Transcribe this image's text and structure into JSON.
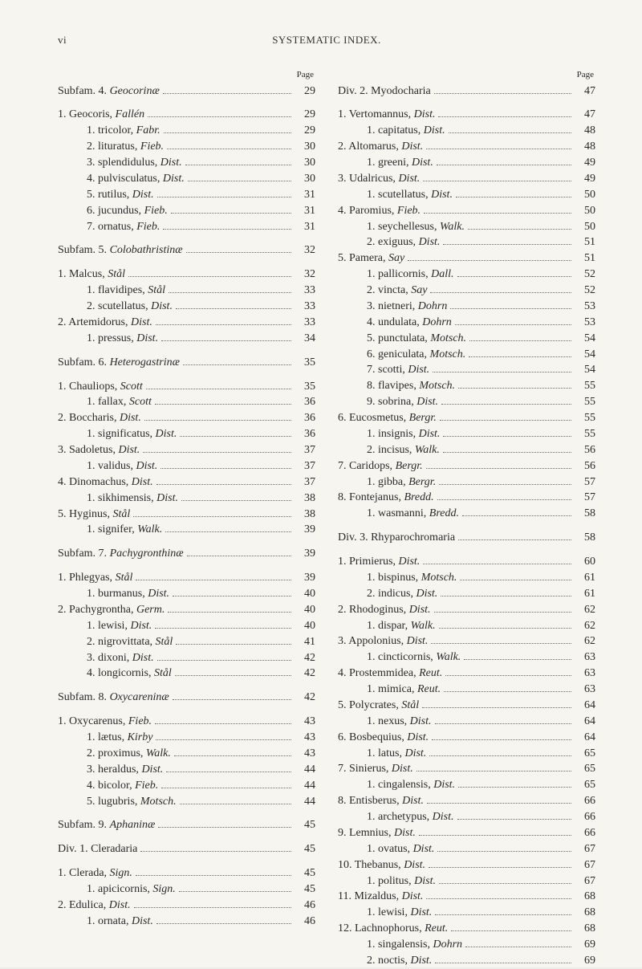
{
  "header": {
    "page_number": "vi",
    "title": "SYSTEMATIC INDEX."
  },
  "columns": {
    "left": {
      "page_label": "Page",
      "entries": [
        {
          "indent": 0,
          "label": "Subfam. 4. <i>Geocorinæ</i>",
          "page": "29",
          "gap": false
        },
        {
          "indent": 0,
          "label": "1. Geocoris, <i>Fallén</i>",
          "page": "29",
          "gap": true
        },
        {
          "indent": 2,
          "label": "1. tricolor, <i>Fabr.</i>",
          "page": "29"
        },
        {
          "indent": 2,
          "label": "2. lituratus, <i>Fieb.</i>",
          "page": "30"
        },
        {
          "indent": 2,
          "label": "3. splendidulus, <i>Dist.</i>",
          "page": "30"
        },
        {
          "indent": 2,
          "label": "4. pulvisculatus, <i>Dist.</i>",
          "page": "30"
        },
        {
          "indent": 2,
          "label": "5. rutilus, <i>Dist.</i>",
          "page": "31"
        },
        {
          "indent": 2,
          "label": "6. jucundus, <i>Fieb.</i>",
          "page": "31"
        },
        {
          "indent": 2,
          "label": "7. ornatus, <i>Fieb.</i>",
          "page": "31"
        },
        {
          "indent": 0,
          "label": "Subfam. 5. <i>Colobathristinæ</i>",
          "page": "32",
          "gap": true
        },
        {
          "indent": 0,
          "label": "1. Malcus, <i>Stål</i>",
          "page": "32",
          "gap": true
        },
        {
          "indent": 2,
          "label": "1. flavidipes, <i>Stål</i>",
          "page": "33"
        },
        {
          "indent": 2,
          "label": "2. scutellatus, <i>Dist.</i>",
          "page": "33"
        },
        {
          "indent": 0,
          "label": "2. Artemidorus, <i>Dist.</i>",
          "page": "33"
        },
        {
          "indent": 2,
          "label": "1. pressus, <i>Dist.</i>",
          "page": "34"
        },
        {
          "indent": 0,
          "label": "Subfam. 6. <i>Heterogastrinæ</i>",
          "page": "35",
          "gap": true
        },
        {
          "indent": 0,
          "label": "1. Chauliops, <i>Scott</i>",
          "page": "35",
          "gap": true
        },
        {
          "indent": 2,
          "label": "1. fallax, <i>Scott</i>",
          "page": "36"
        },
        {
          "indent": 0,
          "label": "2. Boccharis, <i>Dist.</i>",
          "page": "36"
        },
        {
          "indent": 2,
          "label": "1. significatus, <i>Dist.</i>",
          "page": "36"
        },
        {
          "indent": 0,
          "label": "3. Sadoletus, <i>Dist.</i>",
          "page": "37"
        },
        {
          "indent": 2,
          "label": "1. validus, <i>Dist.</i>",
          "page": "37"
        },
        {
          "indent": 0,
          "label": "4. Dinomachus, <i>Dist.</i>",
          "page": "37"
        },
        {
          "indent": 2,
          "label": "1. sikhimensis, <i>Dist.</i>",
          "page": "38"
        },
        {
          "indent": 0,
          "label": "5. Hyginus, <i>Stål</i>",
          "page": "38"
        },
        {
          "indent": 2,
          "label": "1. signifer, <i>Walk.</i>",
          "page": "39"
        },
        {
          "indent": 0,
          "label": "Subfam. 7. <i>Pachygronthinæ</i>",
          "page": "39",
          "gap": true
        },
        {
          "indent": 0,
          "label": "1. Phlegyas, <i>Stål</i>",
          "page": "39",
          "gap": true
        },
        {
          "indent": 2,
          "label": "1. burmanus, <i>Dist.</i>",
          "page": "40"
        },
        {
          "indent": 0,
          "label": "2. Pachygrontha, <i>Germ.</i>",
          "page": "40"
        },
        {
          "indent": 2,
          "label": "1. lewisi, <i>Dist.</i>",
          "page": "40"
        },
        {
          "indent": 2,
          "label": "2. nigrovittata, <i>Stål</i>",
          "page": "41"
        },
        {
          "indent": 2,
          "label": "3. dixoni, <i>Dist.</i>",
          "page": "42"
        },
        {
          "indent": 2,
          "label": "4. longicornis, <i>Stål</i>",
          "page": "42"
        },
        {
          "indent": 0,
          "label": "Subfam. 8. <i>Oxycareninæ</i>",
          "page": "42",
          "gap": true
        },
        {
          "indent": 0,
          "label": "1. Oxycarenus, <i>Fieb.</i>",
          "page": "43",
          "gap": true
        },
        {
          "indent": 2,
          "label": "1. lætus, <i>Kirby</i>",
          "page": "43"
        },
        {
          "indent": 2,
          "label": "2. proximus, <i>Walk.</i>",
          "page": "43"
        },
        {
          "indent": 2,
          "label": "3. heraldus, <i>Dist.</i>",
          "page": "44"
        },
        {
          "indent": 2,
          "label": "4. bicolor, <i>Fieb.</i>",
          "page": "44"
        },
        {
          "indent": 2,
          "label": "5. lugubris, <i>Motsch.</i>",
          "page": "44"
        },
        {
          "indent": 0,
          "label": "Subfam. 9. <i>Aphaninæ</i>",
          "page": "45",
          "gap": true
        },
        {
          "indent": 0,
          "label": "Div. 1. Cleradaria",
          "page": "45",
          "gap": true
        },
        {
          "indent": 0,
          "label": "1. Clerada, <i>Sign.</i>",
          "page": "45",
          "gap": true
        },
        {
          "indent": 2,
          "label": "1. apicicornis, <i>Sign.</i>",
          "page": "45"
        },
        {
          "indent": 0,
          "label": "2. Edulica, <i>Dist.</i>",
          "page": "46"
        },
        {
          "indent": 2,
          "label": "1. ornata, <i>Dist.</i>",
          "page": "46"
        }
      ]
    },
    "right": {
      "page_label": "Page",
      "entries": [
        {
          "indent": 0,
          "label": "Div. 2. Myodocharia",
          "page": "47"
        },
        {
          "indent": 0,
          "label": "1. Vertomannus, <i>Dist.</i>",
          "page": "47",
          "gap": true
        },
        {
          "indent": 2,
          "label": "1. capitatus, <i>Dist.</i>",
          "page": "48"
        },
        {
          "indent": 0,
          "label": "2. Altomarus, <i>Dist.</i>",
          "page": "48"
        },
        {
          "indent": 2,
          "label": "1. greeni, <i>Dist.</i>",
          "page": "49"
        },
        {
          "indent": 0,
          "label": "3. Udalricus, <i>Dist.</i>",
          "page": "49"
        },
        {
          "indent": 2,
          "label": "1. scutellatus, <i>Dist.</i>",
          "page": "50"
        },
        {
          "indent": 0,
          "label": "4. Paromius, <i>Fieb.</i>",
          "page": "50"
        },
        {
          "indent": 2,
          "label": "1. seychellesus, <i>Walk.</i>",
          "page": "50"
        },
        {
          "indent": 2,
          "label": "2. exiguus, <i>Dist.</i>",
          "page": "51"
        },
        {
          "indent": 0,
          "label": "5. Pamera, <i>Say</i>",
          "page": "51"
        },
        {
          "indent": 2,
          "label": "1. pallicornis, <i>Dall.</i>",
          "page": "52"
        },
        {
          "indent": 2,
          "label": "2. vincta, <i>Say</i>",
          "page": "52"
        },
        {
          "indent": 2,
          "label": "3. nietneri, <i>Dohrn</i>",
          "page": "53"
        },
        {
          "indent": 2,
          "label": "4. undulata, <i>Dohrn</i>",
          "page": "53"
        },
        {
          "indent": 2,
          "label": "5. punctulata, <i>Motsch.</i>",
          "page": "54"
        },
        {
          "indent": 2,
          "label": "6. geniculata, <i>Motsch.</i>",
          "page": "54"
        },
        {
          "indent": 2,
          "label": "7. scotti, <i>Dist.</i>",
          "page": "54"
        },
        {
          "indent": 2,
          "label": "8. flavipes, <i>Motsch.</i>",
          "page": "55"
        },
        {
          "indent": 2,
          "label": "9. sobrina, <i>Dist.</i>",
          "page": "55"
        },
        {
          "indent": 0,
          "label": "6. Eucosmetus, <i>Bergr.</i>",
          "page": "55"
        },
        {
          "indent": 2,
          "label": "1. insignis, <i>Dist.</i>",
          "page": "55"
        },
        {
          "indent": 2,
          "label": "2. incisus, <i>Walk.</i>",
          "page": "56"
        },
        {
          "indent": 0,
          "label": "7. Caridops, <i>Bergr.</i>",
          "page": "56"
        },
        {
          "indent": 2,
          "label": "1. gibba, <i>Bergr.</i>",
          "page": "57"
        },
        {
          "indent": 0,
          "label": "8. Fontejanus, <i>Bredd.</i>",
          "page": "57"
        },
        {
          "indent": 2,
          "label": "1. wasmanni, <i>Bredd.</i>",
          "page": "58"
        },
        {
          "indent": 0,
          "label": "Div. 3. Rhyparochromaria",
          "page": "58",
          "gap": true
        },
        {
          "indent": 0,
          "label": "1. Primierus, <i>Dist.</i>",
          "page": "60",
          "gap": true
        },
        {
          "indent": 2,
          "label": "1. bispinus, <i>Motsch.</i>",
          "page": "61"
        },
        {
          "indent": 2,
          "label": "2. indicus, <i>Dist.</i>",
          "page": "61"
        },
        {
          "indent": 0,
          "label": "2. Rhodoginus, <i>Dist.</i>",
          "page": "62"
        },
        {
          "indent": 2,
          "label": "1. dispar, <i>Walk.</i>",
          "page": "62"
        },
        {
          "indent": 0,
          "label": "3. Appolonius, <i>Dist.</i>",
          "page": "62"
        },
        {
          "indent": 2,
          "label": "1. cincticornis, <i>Walk.</i>",
          "page": "63"
        },
        {
          "indent": 0,
          "label": "4. Prostemmidea, <i>Reut.</i>",
          "page": "63"
        },
        {
          "indent": 2,
          "label": "1. mimica, <i>Reut.</i>",
          "page": "63"
        },
        {
          "indent": 0,
          "label": "5. Polycrates, <i>Stål</i>",
          "page": "64"
        },
        {
          "indent": 2,
          "label": "1. nexus, <i>Dist.</i>",
          "page": "64"
        },
        {
          "indent": 0,
          "label": "6. Bosbequius, <i>Dist.</i>",
          "page": "64"
        },
        {
          "indent": 2,
          "label": "1. latus, <i>Dist.</i>",
          "page": "65"
        },
        {
          "indent": 0,
          "label": "7. Sinierus, <i>Dist.</i>",
          "page": "65"
        },
        {
          "indent": 2,
          "label": "1. cingalensis, <i>Dist.</i>",
          "page": "65"
        },
        {
          "indent": 0,
          "label": "8. Entisberus, <i>Dist.</i>",
          "page": "66"
        },
        {
          "indent": 2,
          "label": "1. archetypus, <i>Dist.</i>",
          "page": "66"
        },
        {
          "indent": 0,
          "label": "9. Lemnius, <i>Dist.</i>",
          "page": "66"
        },
        {
          "indent": 2,
          "label": "1. ovatus, <i>Dist.</i>",
          "page": "67"
        },
        {
          "indent": 0,
          "label": "10. Thebanus, <i>Dist.</i>",
          "page": "67"
        },
        {
          "indent": 2,
          "label": "1. politus, <i>Dist.</i>",
          "page": "67"
        },
        {
          "indent": 0,
          "label": "11. Mizaldus, <i>Dist.</i>",
          "page": "68"
        },
        {
          "indent": 2,
          "label": "1. lewisi, <i>Dist.</i>",
          "page": "68"
        },
        {
          "indent": 0,
          "label": "12. Lachnophorus, <i>Reut.</i>",
          "page": "68"
        },
        {
          "indent": 2,
          "label": "1. singalensis, <i>Dohrn</i>",
          "page": "69"
        },
        {
          "indent": 2,
          "label": "2. noctis, <i>Dist.</i>",
          "page": "69"
        }
      ]
    }
  }
}
